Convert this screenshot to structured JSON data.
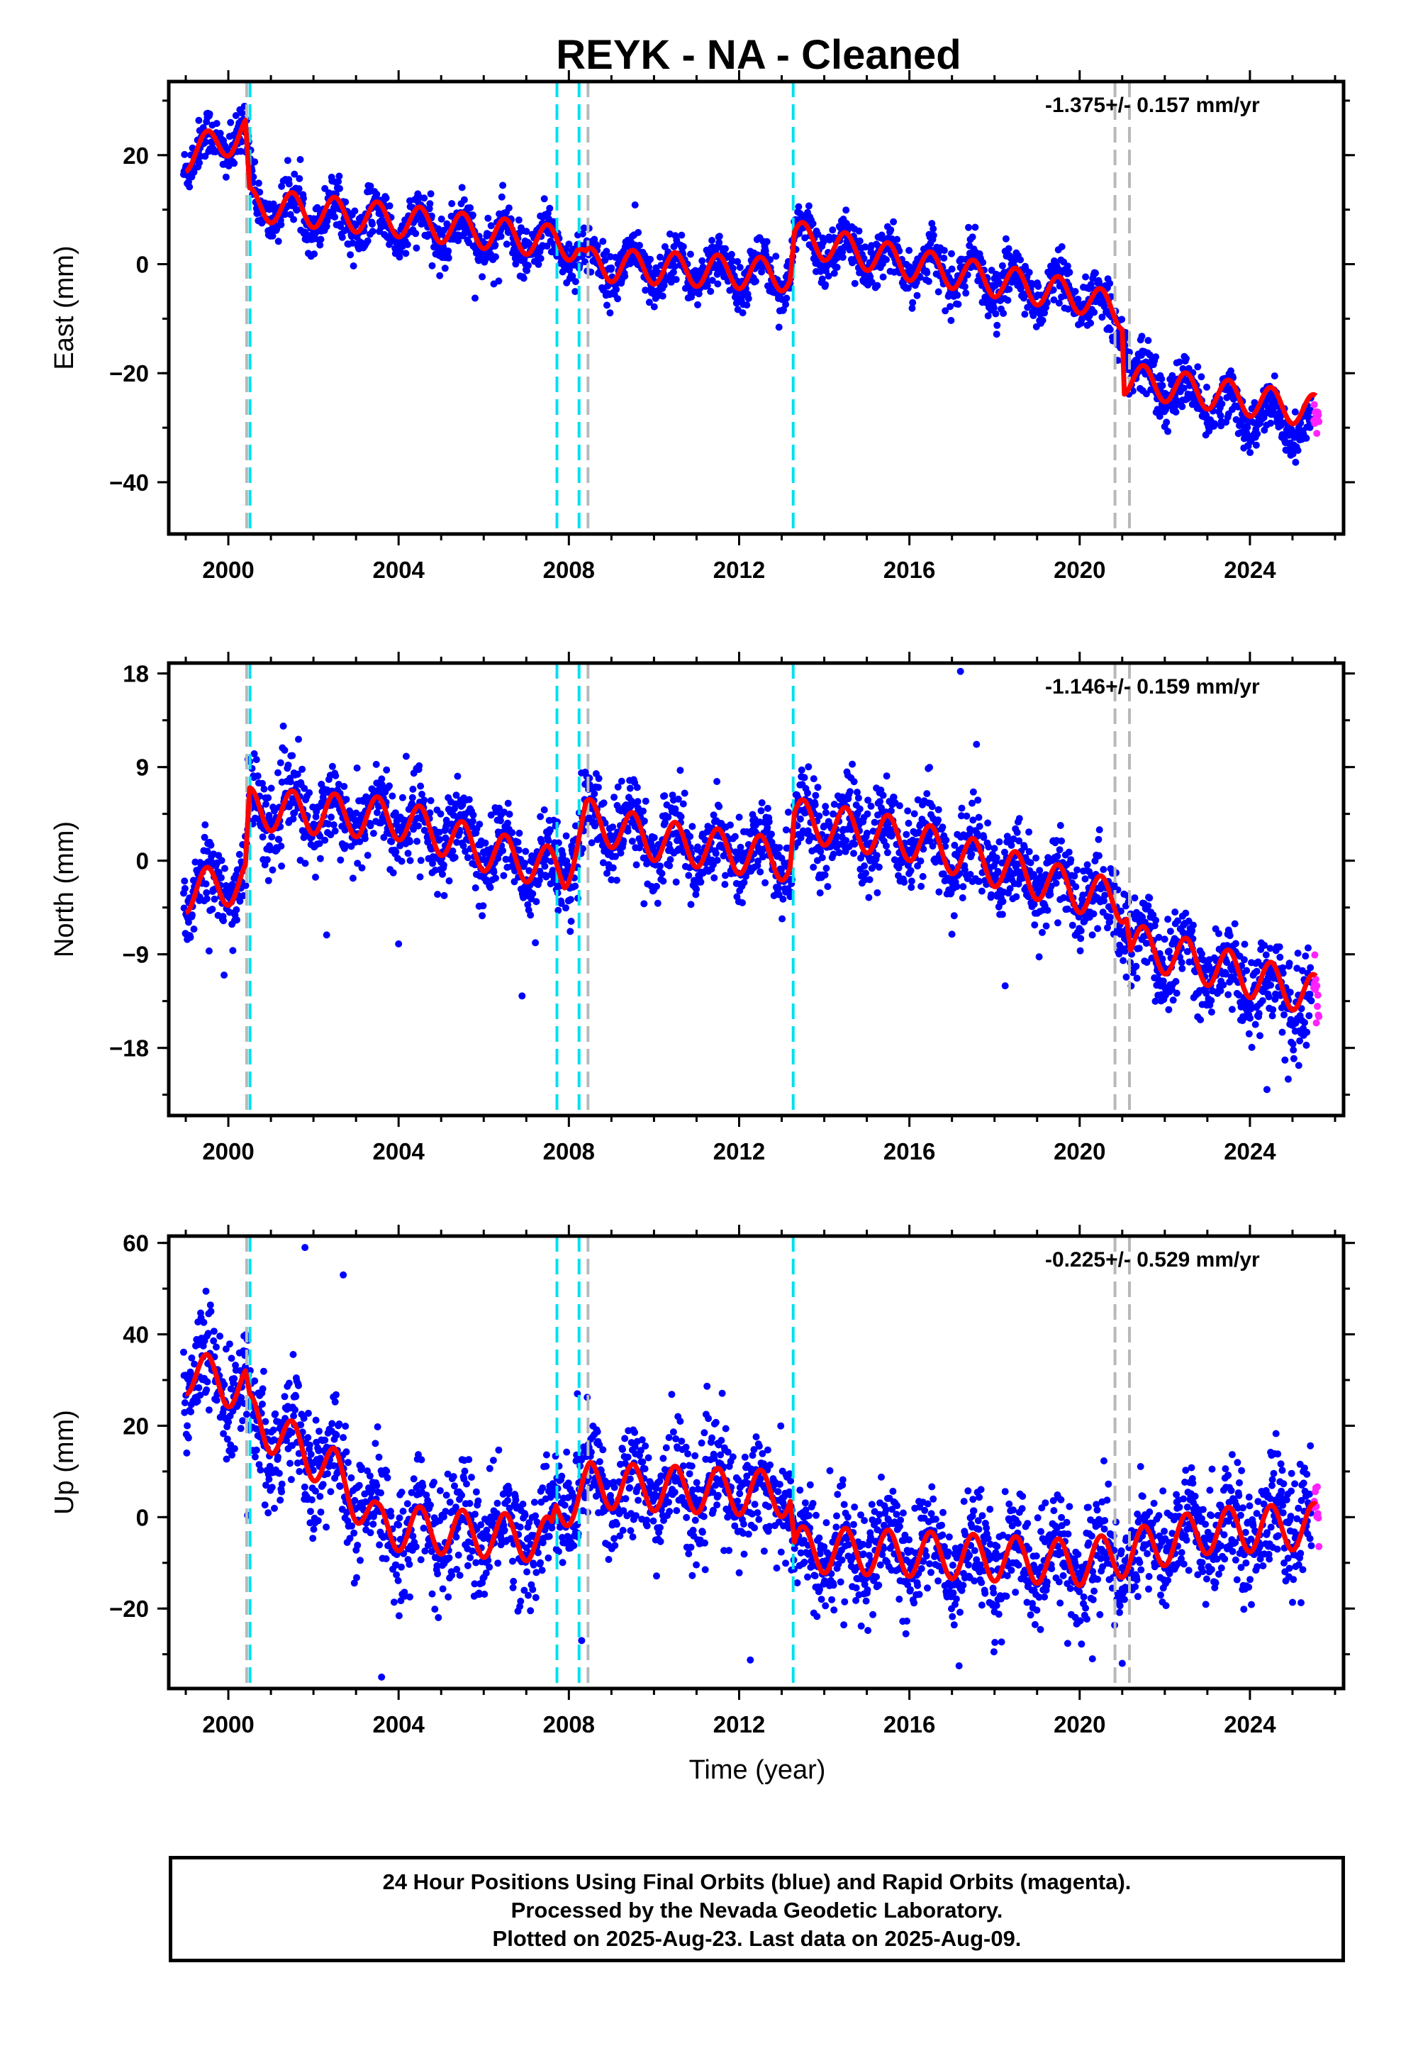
{
  "title": "REYK  - NA - Cleaned",
  "colors": {
    "final": "#0000ff",
    "rapid": "#ff22ff",
    "model": "#ff0000",
    "steps_equipment": "#00e0f0",
    "steps_other": "#b8b8b8"
  },
  "vertical_lines": {
    "cyan": [
      2000.51,
      2007.72,
      2008.24,
      2013.27
    ],
    "gray": [
      2000.43,
      2008.45,
      2020.83,
      2021.17
    ]
  },
  "footer": {
    "line1": "24 Hour Positions Using Final Orbits (blue) and Rapid Orbits (magenta).",
    "line2": "Processed by the Nevada Geodetic Laboratory.",
    "line3": "Plotted on 2025-Aug-23. Last data on 2025-Aug-09."
  },
  "chart_data": [
    {
      "type": "scatter",
      "ylabel": "East (mm)",
      "xlabel": "",
      "xlim": [
        1998.6,
        2026.2
      ],
      "ylim": [
        -49.5,
        33.5
      ],
      "yticks": [
        -40,
        -20,
        0,
        20
      ],
      "xticks": [
        2000,
        2004,
        2008,
        2012,
        2016,
        2020,
        2024
      ],
      "rate": "-1.375+/- 0.157 mm/yr",
      "trend_points": [
        [
          1999.0,
          20
        ],
        [
          2000.4,
          24
        ],
        [
          2000.6,
          11
        ],
        [
          2004,
          7
        ],
        [
          2008.2,
          3
        ],
        [
          2008.4,
          0
        ],
        [
          2013.2,
          -2
        ],
        [
          2013.3,
          5
        ],
        [
          2016,
          0
        ],
        [
          2020,
          -6
        ],
        [
          2021.0,
          -10
        ],
        [
          2021.2,
          -20
        ],
        [
          2022.5,
          -24
        ],
        [
          2025.55,
          -31
        ]
      ],
      "model_points": [
        [
          1999.0,
          20
        ],
        [
          2000.4,
          24
        ],
        [
          2000.5,
          11
        ],
        [
          2004,
          8
        ],
        [
          2008.2,
          3.5
        ],
        [
          2008.4,
          0
        ],
        [
          2013.2,
          -2
        ],
        [
          2013.3,
          5
        ],
        [
          2016,
          0
        ],
        [
          2020,
          -6
        ],
        [
          2021.0,
          -9
        ],
        [
          2021.05,
          -21
        ],
        [
          2025.55,
          -27
        ]
      ],
      "amplitude": 3,
      "scatter": 2.2
    },
    {
      "type": "scatter",
      "ylabel": "North (mm)",
      "xlabel": "",
      "xlim": [
        1998.6,
        2026.2
      ],
      "ylim": [
        -24.5,
        19
      ],
      "yticks": [
        -18,
        -9,
        0,
        9,
        18
      ],
      "xticks": [
        2000,
        2004,
        2008,
        2012,
        2016,
        2020,
        2024
      ],
      "rate": "-1.146+/- 0.159 mm/yr",
      "trend_points": [
        [
          1999.0,
          -3
        ],
        [
          2000.4,
          -2
        ],
        [
          2000.5,
          5
        ],
        [
          2004,
          4
        ],
        [
          2006,
          1
        ],
        [
          2007.9,
          -1
        ],
        [
          2008.4,
          4
        ],
        [
          2010,
          2
        ],
        [
          2013.2,
          0
        ],
        [
          2013.3,
          4
        ],
        [
          2016,
          2
        ],
        [
          2020,
          -3
        ],
        [
          2021.1,
          -5
        ],
        [
          2021.2,
          -8
        ],
        [
          2023,
          -10
        ],
        [
          2025.55,
          -14
        ]
      ],
      "model_points": [
        [
          1999.0,
          -3
        ],
        [
          2000.4,
          -2
        ],
        [
          2000.5,
          5
        ],
        [
          2004,
          4
        ],
        [
          2006,
          1
        ],
        [
          2007.9,
          -1
        ],
        [
          2008.4,
          4
        ],
        [
          2010,
          2
        ],
        [
          2013.2,
          0
        ],
        [
          2013.3,
          4
        ],
        [
          2016,
          2
        ],
        [
          2020,
          -3
        ],
        [
          2021.1,
          -4
        ],
        [
          2021.2,
          -8
        ],
        [
          2023,
          -10
        ],
        [
          2025.55,
          -13
        ]
      ],
      "amplitude": 2,
      "scatter": 2.0,
      "outliers": [
        [
          2017.2,
          18.2
        ],
        [
          1999.9,
          -11
        ],
        [
          2004.0,
          -8
        ],
        [
          2006.9,
          -13
        ],
        [
          2024.4,
          -22
        ],
        [
          2024.9,
          -21
        ]
      ]
    },
    {
      "type": "scatter",
      "ylabel": "Up (mm)",
      "xlabel": "Time (year)",
      "xlim": [
        1998.6,
        2026.2
      ],
      "ylim": [
        -37.5,
        61.5
      ],
      "yticks": [
        -20,
        0,
        20,
        40,
        60
      ],
      "xticks": [
        2000,
        2004,
        2008,
        2012,
        2016,
        2020,
        2024
      ],
      "rate": "-0.225+/- 0.529 mm/yr",
      "trend_points": [
        [
          1999.0,
          32
        ],
        [
          2000.4,
          27
        ],
        [
          2000.5,
          22
        ],
        [
          2002.5,
          10
        ],
        [
          2003.5,
          -2
        ],
        [
          2007.6,
          -4
        ],
        [
          2007.7,
          2
        ],
        [
          2008.5,
          7
        ],
        [
          2013.2,
          5
        ],
        [
          2013.3,
          -8
        ],
        [
          2016,
          -8
        ],
        [
          2020,
          -10
        ],
        [
          2021.1,
          -8
        ],
        [
          2023,
          -3
        ],
        [
          2025.55,
          0
        ]
      ],
      "model_points": [
        [
          1999.0,
          32
        ],
        [
          2000.4,
          28
        ],
        [
          2000.5,
          22
        ],
        [
          2002.5,
          10
        ],
        [
          2003.5,
          -2
        ],
        [
          2007.6,
          -5
        ],
        [
          2007.7,
          1
        ],
        [
          2008.5,
          7
        ],
        [
          2013.2,
          5
        ],
        [
          2013.3,
          -7
        ],
        [
          2016,
          -8
        ],
        [
          2020,
          -10
        ],
        [
          2021.1,
          -8
        ],
        [
          2023,
          -3
        ],
        [
          2025.55,
          -2
        ]
      ],
      "amplitude": 5,
      "scatter": 6.0,
      "outliers": [
        [
          2003.6,
          -35
        ],
        [
          2001.8,
          59
        ],
        [
          2002.7,
          53
        ],
        [
          2008.2,
          27
        ],
        [
          2008.3,
          -27
        ],
        [
          2020.3,
          -31
        ],
        [
          2021.0,
          -32
        ]
      ]
    }
  ]
}
